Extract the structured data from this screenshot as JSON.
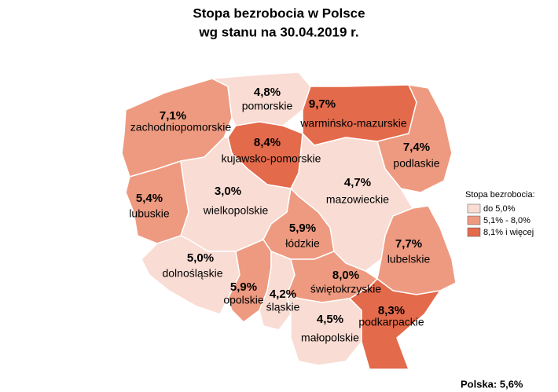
{
  "title": "Stopa bezrobocia w Polsce",
  "subtitle": "wg stanu na 30.04.2019 r.",
  "regions": [
    {
      "name": "zachodniopomorskie",
      "value": 7.1,
      "label": "7,1%"
    },
    {
      "name": "pomorskie",
      "value": 4.8,
      "label": "4,8%"
    },
    {
      "name": "warmińsko-mazurskie",
      "value": 9.7,
      "label": "9,7%"
    },
    {
      "name": "podlaskie",
      "value": 7.4,
      "label": "7,4%"
    },
    {
      "name": "kujawsko-pomorskie",
      "value": 8.4,
      "label": "8,4%"
    },
    {
      "name": "mazowieckie",
      "value": 4.7,
      "label": "4,7%"
    },
    {
      "name": "lubuskie",
      "value": 5.4,
      "label": "5,4%"
    },
    {
      "name": "wielkopolskie",
      "value": 3.0,
      "label": "3,0%"
    },
    {
      "name": "łódzkie",
      "value": 5.9,
      "label": "5,9%"
    },
    {
      "name": "lubelskie",
      "value": 7.7,
      "label": "7,7%"
    },
    {
      "name": "dolnośląskie",
      "value": 5.0,
      "label": "5,0%"
    },
    {
      "name": "opolskie",
      "value": 5.9,
      "label": "5,9%"
    },
    {
      "name": "śląskie",
      "value": 4.2,
      "label": "4,2%"
    },
    {
      "name": "świętokrzyskie",
      "value": 8.0,
      "label": "8,0%"
    },
    {
      "name": "małopolskie",
      "value": 4.5,
      "label": "4,5%"
    },
    {
      "name": "podkarpackie",
      "value": 8.3,
      "label": "8,3%"
    }
  ],
  "legend": {
    "title": "Stopa bezrobocia:",
    "items": [
      {
        "label": "do 5,0%",
        "max": 5.0,
        "color": "#f9dcd3"
      },
      {
        "label": "5,1% - 8,0%",
        "max": 8.0,
        "color": "#ee9a80"
      },
      {
        "label": "8,1% i więcej",
        "max": null,
        "color": "#e36a4b"
      }
    ]
  },
  "footer": "Polska: 5,6%"
}
